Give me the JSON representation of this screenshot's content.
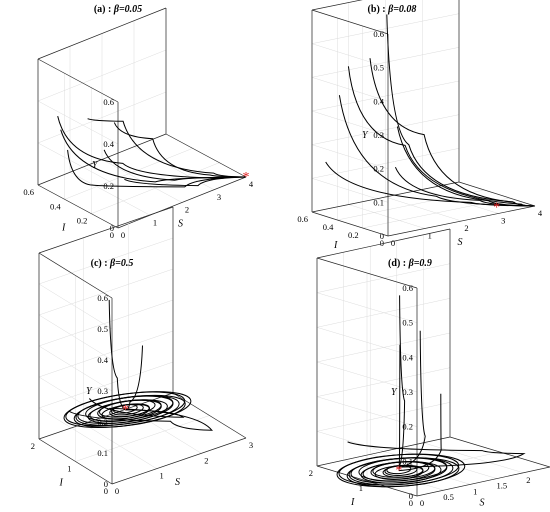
{
  "chart_data": [
    {
      "type": "line",
      "panel": "(a) :",
      "beta": "β=0.05",
      "xlabel": "S",
      "ylabel": "I",
      "zlabel": "Y",
      "xlim": [
        0,
        4
      ],
      "ylim": [
        0,
        0.6
      ],
      "zlim": [
        0,
        0.6
      ],
      "x_ticks": [
        "0",
        "1",
        "2",
        "3",
        "4"
      ],
      "y_ticks": [
        "0",
        "0.2",
        "0.4",
        "0.6"
      ],
      "z_ticks": [
        "0",
        "0.2",
        "0.4",
        "0.6"
      ],
      "equilibrium": {
        "S": 4,
        "I": 0,
        "Y": 0
      },
      "series": [
        {
          "points": [
            [
              0.2,
              0.0,
              0.22
            ],
            [
              2.5,
              0.0,
              0.05
            ],
            [
              4,
              0,
              0
            ]
          ]
        },
        {
          "points": [
            [
              0.3,
              0.1,
              0.45
            ],
            [
              1.5,
              0.1,
              0.3
            ],
            [
              3,
              0.03,
              0.06
            ],
            [
              4,
              0,
              0
            ]
          ]
        },
        {
          "points": [
            [
              0.3,
              0.3,
              0.4
            ],
            [
              1.2,
              0.25,
              0.35
            ],
            [
              3.2,
              0.05,
              0.05
            ],
            [
              4,
              0,
              0
            ]
          ]
        },
        {
          "points": [
            [
              0.2,
              0.5,
              0.35
            ],
            [
              1.4,
              0.3,
              0.12
            ],
            [
              3.4,
              0.03,
              0.02
            ],
            [
              4,
              0,
              0
            ]
          ]
        },
        {
          "points": [
            [
              0.5,
              0.55,
              0.25
            ],
            [
              2,
              0.2,
              0.03
            ],
            [
              4,
              0,
              0
            ]
          ]
        },
        {
          "points": [
            [
              0.4,
              0.2,
              0.28
            ],
            [
              2.2,
              0.1,
              0.06
            ],
            [
              4,
              0,
              0
            ]
          ]
        },
        {
          "points": [
            [
              0.3,
              0.45,
              0.2
            ],
            [
              0.8,
              0.4,
              0.02
            ],
            [
              2.5,
              0.1,
              0.01
            ],
            [
              4,
              0,
              0
            ]
          ]
        }
      ]
    },
    {
      "type": "line",
      "panel": "(b) :",
      "beta": "β=0.08",
      "xlabel": "S",
      "ylabel": "I",
      "zlabel": "Y",
      "xlim": [
        0,
        4
      ],
      "ylim": [
        0,
        0.6
      ],
      "zlim": [
        0,
        0.6
      ],
      "x_ticks": [
        "0",
        "1",
        "2",
        "3",
        "4"
      ],
      "y_ticks": [
        "0",
        "0.2",
        "0.4",
        "0.6"
      ],
      "z_ticks": [
        "0",
        "0.1",
        "0.2",
        "0.3",
        "0.4",
        "0.5",
        "0.6"
      ],
      "equilibrium": {
        "S": 3.3,
        "I": 0.1,
        "Y": 0
      },
      "series": [
        {
          "points": [
            [
              0.2,
              0.0,
              0.2
            ],
            [
              2.5,
              0.0,
              0.05
            ],
            [
              4,
              0,
              0
            ]
          ]
        },
        {
          "points": [
            [
              0.2,
              0.2,
              0.5
            ],
            [
              1.5,
              0.15,
              0.25
            ],
            [
              3.5,
              0.02,
              0.02
            ],
            [
              4,
              0,
              0
            ]
          ]
        },
        {
          "points": [
            [
              1.0,
              0.3,
              0.6
            ],
            [
              1.6,
              0.3,
              0.2
            ],
            [
              3.5,
              0.03,
              0.02
            ],
            [
              4,
              0,
              0
            ]
          ]
        },
        {
          "points": [
            [
              0.3,
              0.4,
              0.45
            ],
            [
              1.5,
              0.3,
              0.2
            ],
            [
              3.7,
              0.02,
              0.01
            ],
            [
              4,
              0,
              0
            ]
          ]
        },
        {
          "points": [
            [
              0.4,
              0.5,
              0.35
            ],
            [
              2.0,
              0.2,
              0.05
            ],
            [
              4,
              0,
              0
            ]
          ]
        },
        {
          "points": [
            [
              0.2,
              0.55,
              0.15
            ],
            [
              2.6,
              0.1,
              0.03
            ],
            [
              4,
              0,
              0
            ]
          ]
        },
        {
          "points": [
            [
              0.6,
              0.1,
              0.3
            ],
            [
              2.8,
              0.02,
              0.04
            ],
            [
              4,
              0,
              0
            ]
          ]
        }
      ]
    },
    {
      "type": "line",
      "panel": "(c) :",
      "beta": "β=0.5",
      "xlabel": "S",
      "ylabel": "I",
      "zlabel": "Y",
      "xlim": [
        0,
        3
      ],
      "ylim": [
        0,
        2
      ],
      "zlim": [
        0,
        0.6
      ],
      "x_ticks": [
        "0",
        "1",
        "2",
        "3"
      ],
      "y_ticks": [
        "0",
        "1",
        "2"
      ],
      "z_ticks": [
        "0",
        "0.1",
        "0.2",
        "0.3",
        "0.4",
        "0.5",
        "0.6"
      ],
      "equilibrium": {
        "S": 1.2,
        "I": 1.1,
        "Y": 0.1
      },
      "series": [
        {
          "points": [
            [
              1.0,
              1.3,
              0.45
            ],
            [
              1.1,
              1.2,
              0.2
            ],
            [
              1.2,
              1.1,
              0.1
            ]
          ]
        },
        {
          "points": [
            [
              1.5,
              1.0,
              0.3
            ],
            [
              1.3,
              1.1,
              0.12
            ],
            [
              1.2,
              1.1,
              0.1
            ]
          ]
        },
        {
          "points": [
            [
              0.5,
              1.8,
              0.08
            ],
            [
              1.8,
              0.6,
              0.07
            ],
            [
              2.4,
              0.2,
              0.04
            ],
            [
              1.0,
              1.3,
              0.1
            ]
          ]
        },
        {
          "points": [
            [
              0.8,
              1.6,
              0.12
            ],
            [
              2.0,
              0.5,
              0.08
            ],
            [
              1.2,
              1.1,
              0.1
            ]
          ]
        }
      ]
    },
    {
      "type": "line",
      "panel": "(d) :",
      "beta": "β=0.9",
      "xlabel": "S",
      "ylabel": "I",
      "zlabel": "Y",
      "xlim": [
        0,
        2.5
      ],
      "ylim": [
        0,
        2
      ],
      "zlim": [
        0,
        0.6
      ],
      "x_ticks": [
        "0",
        "0.5",
        "1",
        "1.5",
        "2",
        "2.5"
      ],
      "y_ticks": [
        "0",
        "1",
        "2"
      ],
      "z_ticks": [
        "0",
        "0.1",
        "0.2",
        "0.3",
        "0.4",
        "0.5",
        "0.6"
      ],
      "equilibrium": {
        "S": 0.6,
        "I": 1.0,
        "Y": 0.01
      },
      "series": [
        {
          "points": [
            [
              0.8,
              1.2,
              0.5
            ],
            [
              0.8,
              1.1,
              0.2
            ],
            [
              0.6,
              1.0,
              0.02
            ]
          ]
        },
        {
          "points": [
            [
              1.0,
              1.0,
              0.4
            ],
            [
              1.0,
              0.9,
              0.1
            ],
            [
              0.6,
              1.0,
              0.02
            ]
          ]
        },
        {
          "points": [
            [
              0.9,
              1.3,
              0.35
            ],
            [
              0.8,
              1.2,
              0.08
            ],
            [
              0.6,
              1.0,
              0.01
            ]
          ]
        },
        {
          "points": [
            [
              1.2,
              0.8,
              0.22
            ],
            [
              1.3,
              0.9,
              0.05
            ],
            [
              0.6,
              1.0,
              0.01
            ]
          ]
        },
        {
          "points": [
            [
              0.2,
              1.6,
              0.08
            ],
            [
              1.6,
              0.4,
              0.06
            ],
            [
              2.2,
              0.2,
              0.04
            ],
            [
              0.6,
              1.0,
              0.02
            ]
          ]
        }
      ]
    }
  ]
}
